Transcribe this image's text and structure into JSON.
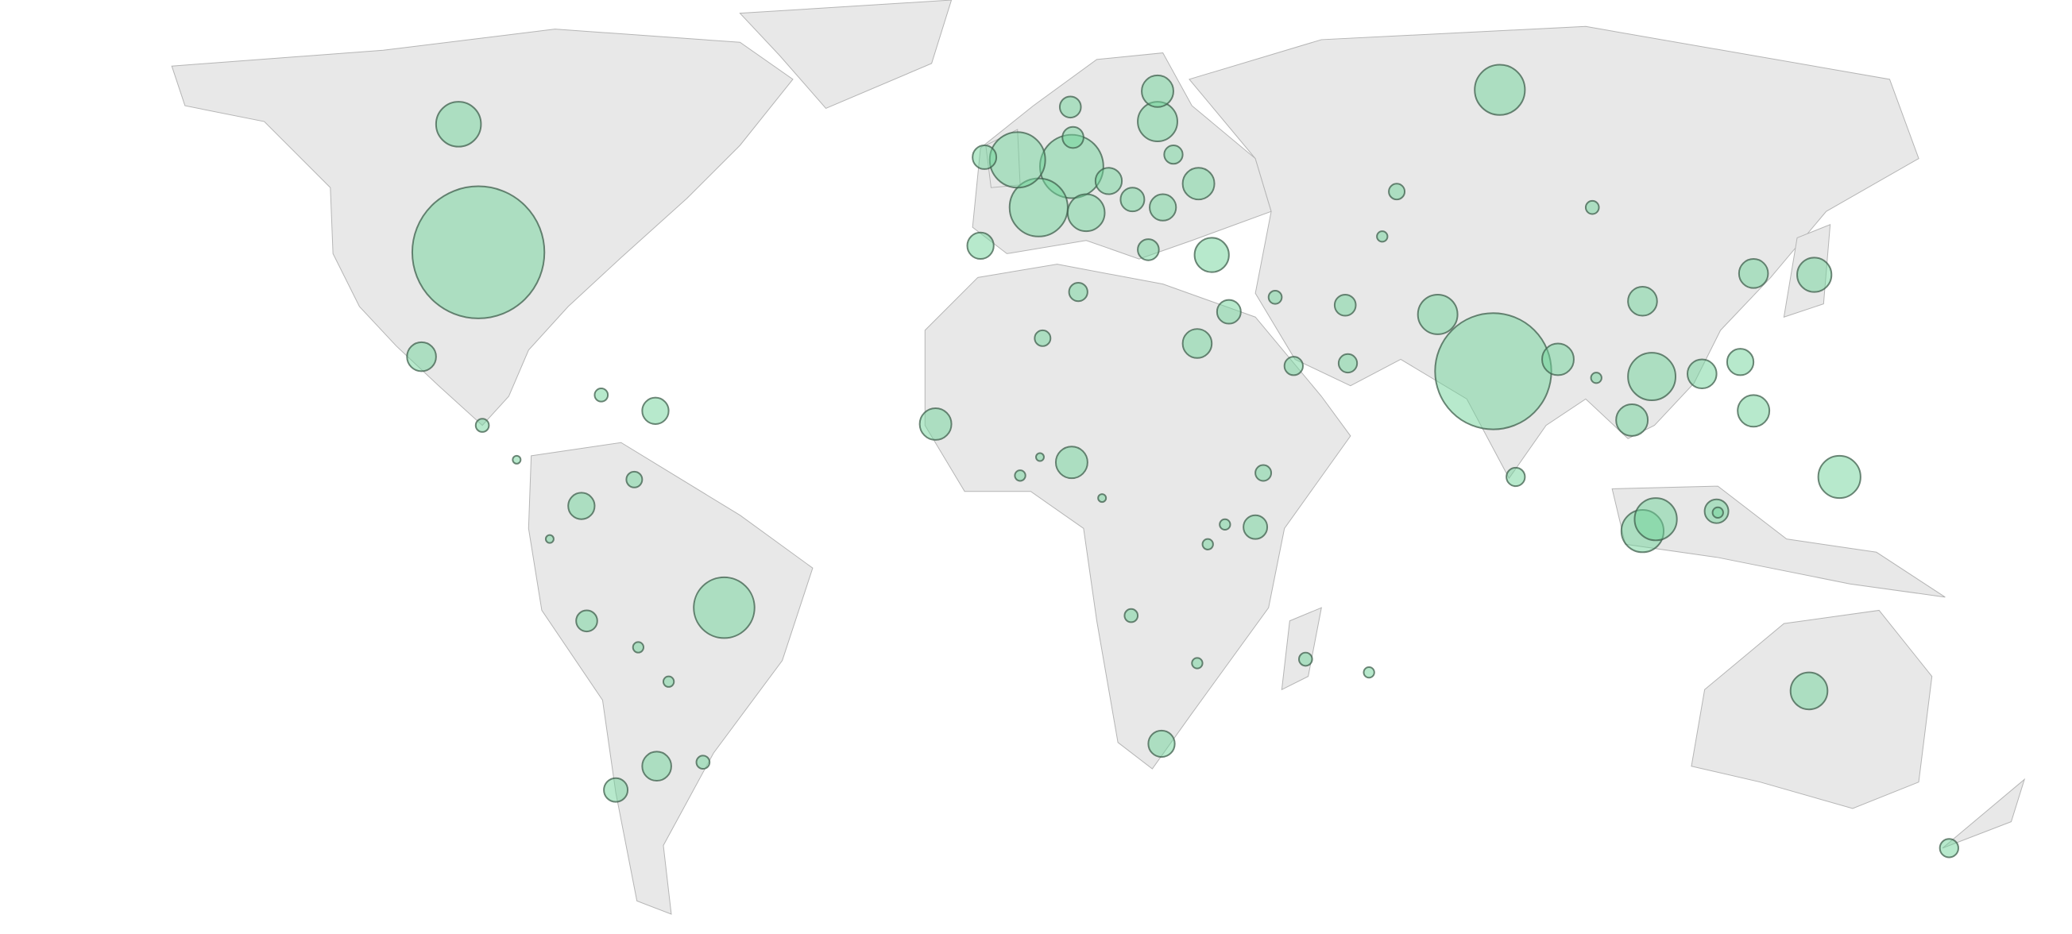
{
  "map": {
    "type": "bubble-map",
    "bubble_color": "#6fd39a",
    "values": [
      2500,
      289,
      529,
      1936,
      361,
      121,
      196,
      256,
      256,
      144,
      169,
      121,
      121,
      324,
      144,
      144,
      225,
      484,
      441,
      576,
      100,
      196,
      100,
      144,
      225,
      144,
      169,
      121,
      144,
      100,
      121,
      81,
      64,
      100,
      36,
      49,
      64,
      81,
      36,
      144,
      25,
      36,
      25,
      100,
      81,
      256,
      49,
      121,
      49,
      49,
      36,
      25,
      100,
      81,
      64,
      64,
      49,
      64,
      100,
      81,
      81,
      49,
      25,
      25,
      25,
      16,
      16,
      16,
      16,
      25,
      16,
      16,
      9,
      16,
      9,
      16,
      9,
      16,
      9,
      16
    ]
  }
}
